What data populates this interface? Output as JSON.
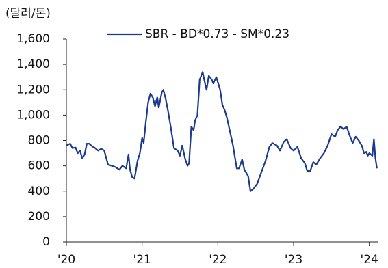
{
  "chart_data": {
    "type": "line",
    "y_unit": "(달러/톤)",
    "x": [
      2020.0,
      2020.05,
      2020.08,
      2020.12,
      2020.15,
      2020.18,
      2020.21,
      2020.24,
      2020.27,
      2020.3,
      2020.34,
      2020.38,
      2020.42,
      2020.46,
      2020.5,
      2020.55,
      2020.6,
      2020.65,
      2020.7,
      2020.74,
      2020.79,
      2020.82,
      2020.84,
      2020.87,
      2020.9,
      2020.94,
      2020.97,
      2021.0,
      2021.02,
      2021.05,
      2021.08,
      2021.11,
      2021.14,
      2021.17,
      2021.2,
      2021.22,
      2021.26,
      2021.28,
      2021.31,
      2021.34,
      2021.38,
      2021.42,
      2021.47,
      2021.5,
      2021.53,
      2021.57,
      2021.6,
      2021.62,
      2021.65,
      2021.68,
      2021.7,
      2021.73,
      2021.76,
      2021.8,
      2021.82,
      2021.85,
      2021.88,
      2021.92,
      2021.94,
      2021.98,
      2022.03,
      2022.06,
      2022.09,
      2022.12,
      2022.16,
      2022.2,
      2022.25,
      2022.28,
      2022.32,
      2022.35,
      2022.4,
      2022.43,
      2022.47,
      2022.52,
      2022.58,
      2022.63,
      2022.68,
      2022.72,
      2022.78,
      2022.82,
      2022.87,
      2022.91,
      2022.96,
      2023.0,
      2023.05,
      2023.1,
      2023.15,
      2023.18,
      2023.22,
      2023.26,
      2023.3,
      2023.35,
      2023.4,
      2023.45,
      2023.5,
      2023.55,
      2023.58,
      2023.62,
      2023.66,
      2023.7,
      2023.74,
      2023.78,
      2023.82,
      2023.86,
      2023.9,
      2023.93,
      2023.96,
      2023.98,
      2024.0,
      2024.02,
      2024.04,
      2024.06,
      2024.08,
      2024.09,
      2024.1
    ],
    "series": [
      {
        "name": "SBR - BD*0.73 - SM*0.23",
        "color": "#1b3a8f",
        "values": [
          760,
          775,
          740,
          745,
          700,
          720,
          660,
          690,
          775,
          775,
          755,
          740,
          720,
          735,
          720,
          610,
          600,
          590,
          570,
          600,
          580,
          690,
          570,
          510,
          500,
          640,
          700,
          820,
          780,
          950,
          1100,
          1170,
          1140,
          1070,
          1140,
          1060,
          1180,
          1200,
          1130,
          1040,
          900,
          740,
          720,
          680,
          760,
          650,
          600,
          620,
          910,
          880,
          960,
          1000,
          1280,
          1340,
          1280,
          1200,
          1310,
          1280,
          1250,
          1300,
          1200,
          1080,
          1040,
          980,
          870,
          760,
          580,
          580,
          650,
          570,
          520,
          400,
          420,
          460,
          560,
          640,
          750,
          780,
          760,
          720,
          790,
          810,
          740,
          720,
          750,
          660,
          620,
          560,
          560,
          630,
          610,
          660,
          700,
          760,
          850,
          830,
          880,
          910,
          890,
          910,
          840,
          780,
          830,
          800,
          760,
          700,
          710,
          680,
          700,
          690,
          680,
          810,
          660,
          620,
          580
        ]
      }
    ],
    "xlim": [
      2020,
      2024.12
    ],
    "xticks": [
      {
        "value": 2020,
        "label": "'20"
      },
      {
        "value": 2021,
        "label": "'21"
      },
      {
        "value": 2022,
        "label": "'22"
      },
      {
        "value": 2023,
        "label": "'23"
      },
      {
        "value": 2024,
        "label": "'24"
      }
    ],
    "ylim": [
      0,
      1600
    ],
    "yticks": [
      0,
      200,
      400,
      600,
      800,
      {
        "value": 1000,
        "label": "1,000"
      },
      {
        "value": 1200,
        "label": "1,200"
      },
      {
        "value": 1400,
        "label": "1,400"
      },
      {
        "value": 1600,
        "label": "1,600"
      }
    ],
    "grid": false,
    "legend": "top"
  }
}
